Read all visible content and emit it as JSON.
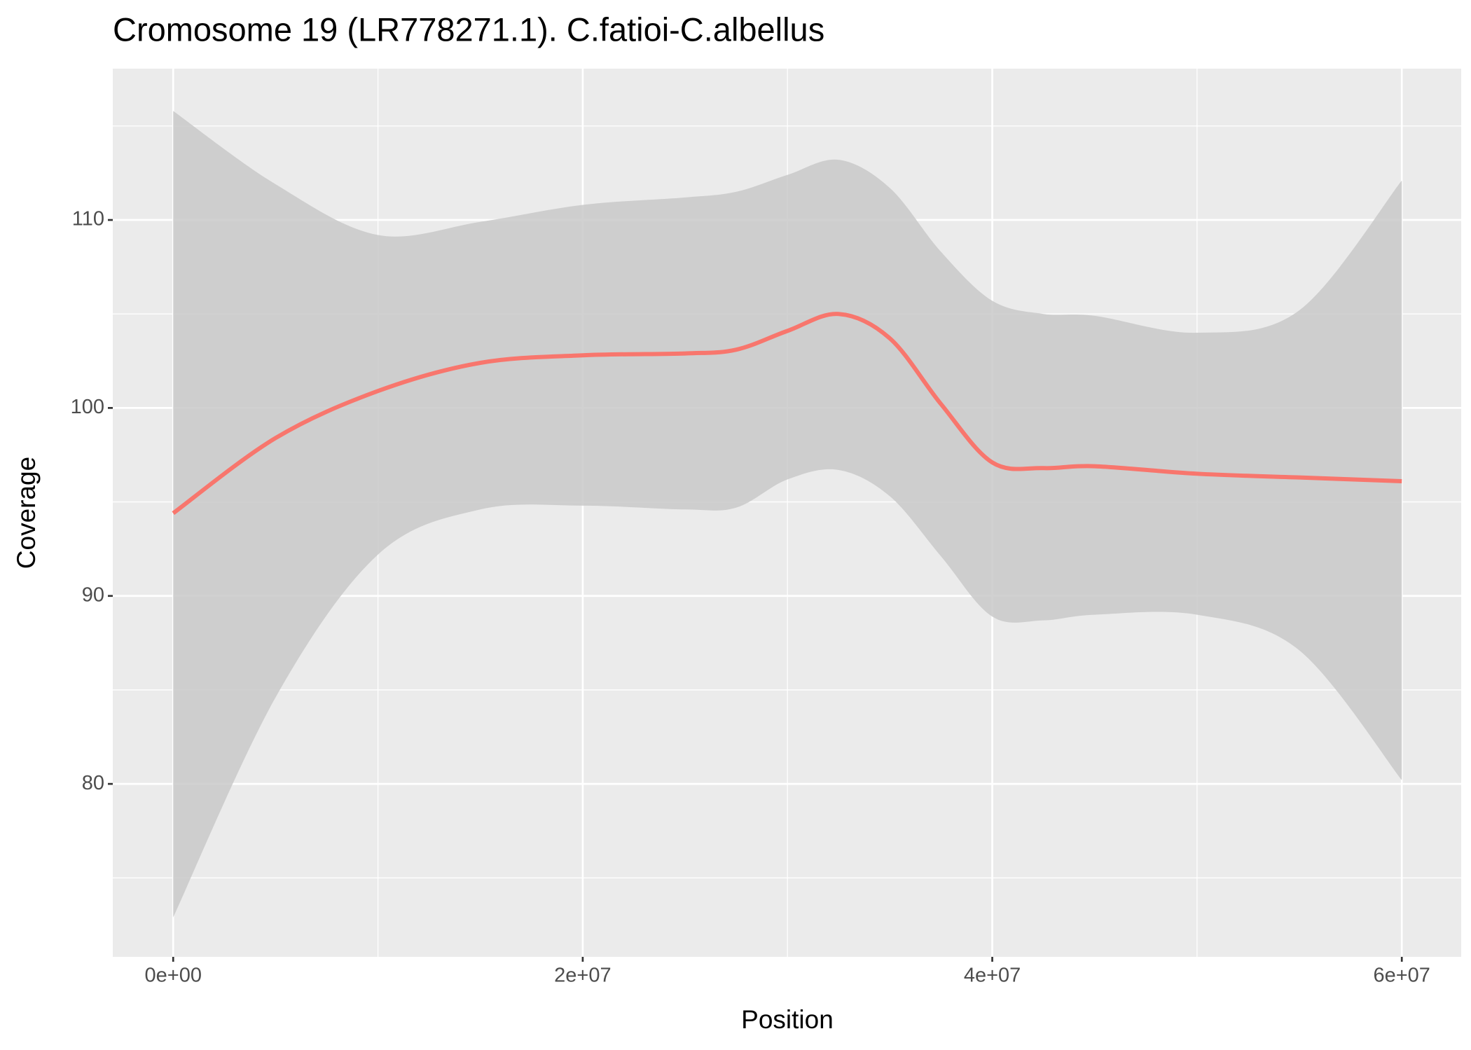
{
  "chart_data": {
    "type": "line",
    "title": "Cromosome 19 (LR778271.1). C.fatioi-C.albellus",
    "x_label": "Position",
    "y_label": "Coverage",
    "x": [
      0,
      5000000,
      10000000,
      15000000,
      20000000,
      25000000,
      27500000,
      30000000,
      32500000,
      35000000,
      37500000,
      40000000,
      42500000,
      45000000,
      50000000,
      55000000,
      60000000
    ],
    "values": [
      94.4,
      98.4,
      100.9,
      102.4,
      102.8,
      102.9,
      103.1,
      104.1,
      105.0,
      103.7,
      100.2,
      97.1,
      96.8,
      96.9,
      96.5,
      96.3,
      96.1
    ],
    "ci_upper": [
      115.8,
      111.9,
      109.2,
      109.9,
      110.8,
      111.2,
      111.5,
      112.4,
      113.2,
      111.7,
      108.3,
      105.7,
      105.0,
      104.9,
      104.0,
      105.2,
      112.1
    ],
    "ci_lower": [
      72.9,
      84.6,
      92.2,
      94.6,
      94.8,
      94.6,
      94.7,
      96.2,
      96.7,
      95.3,
      92.1,
      88.9,
      88.7,
      89.0,
      89.0,
      87.1,
      80.2
    ],
    "color": "#f8766d",
    "band_color": "#c9c9c9",
    "xlim": [
      -2950000,
      62900000
    ],
    "ylim": [
      70.8,
      118.05
    ],
    "xticks": [
      {
        "value": 0,
        "label": "0e+00"
      },
      {
        "value": 20000000,
        "label": "2e+07"
      },
      {
        "value": 40000000,
        "label": "4e+07"
      },
      {
        "value": 60000000,
        "label": "6e+07"
      }
    ],
    "yticks": [
      80,
      90,
      100,
      110
    ],
    "x_minor_grid": [
      10000000,
      30000000,
      50000000
    ],
    "y_minor_grid": [
      75,
      85,
      95,
      105,
      115
    ],
    "grid": true
  }
}
